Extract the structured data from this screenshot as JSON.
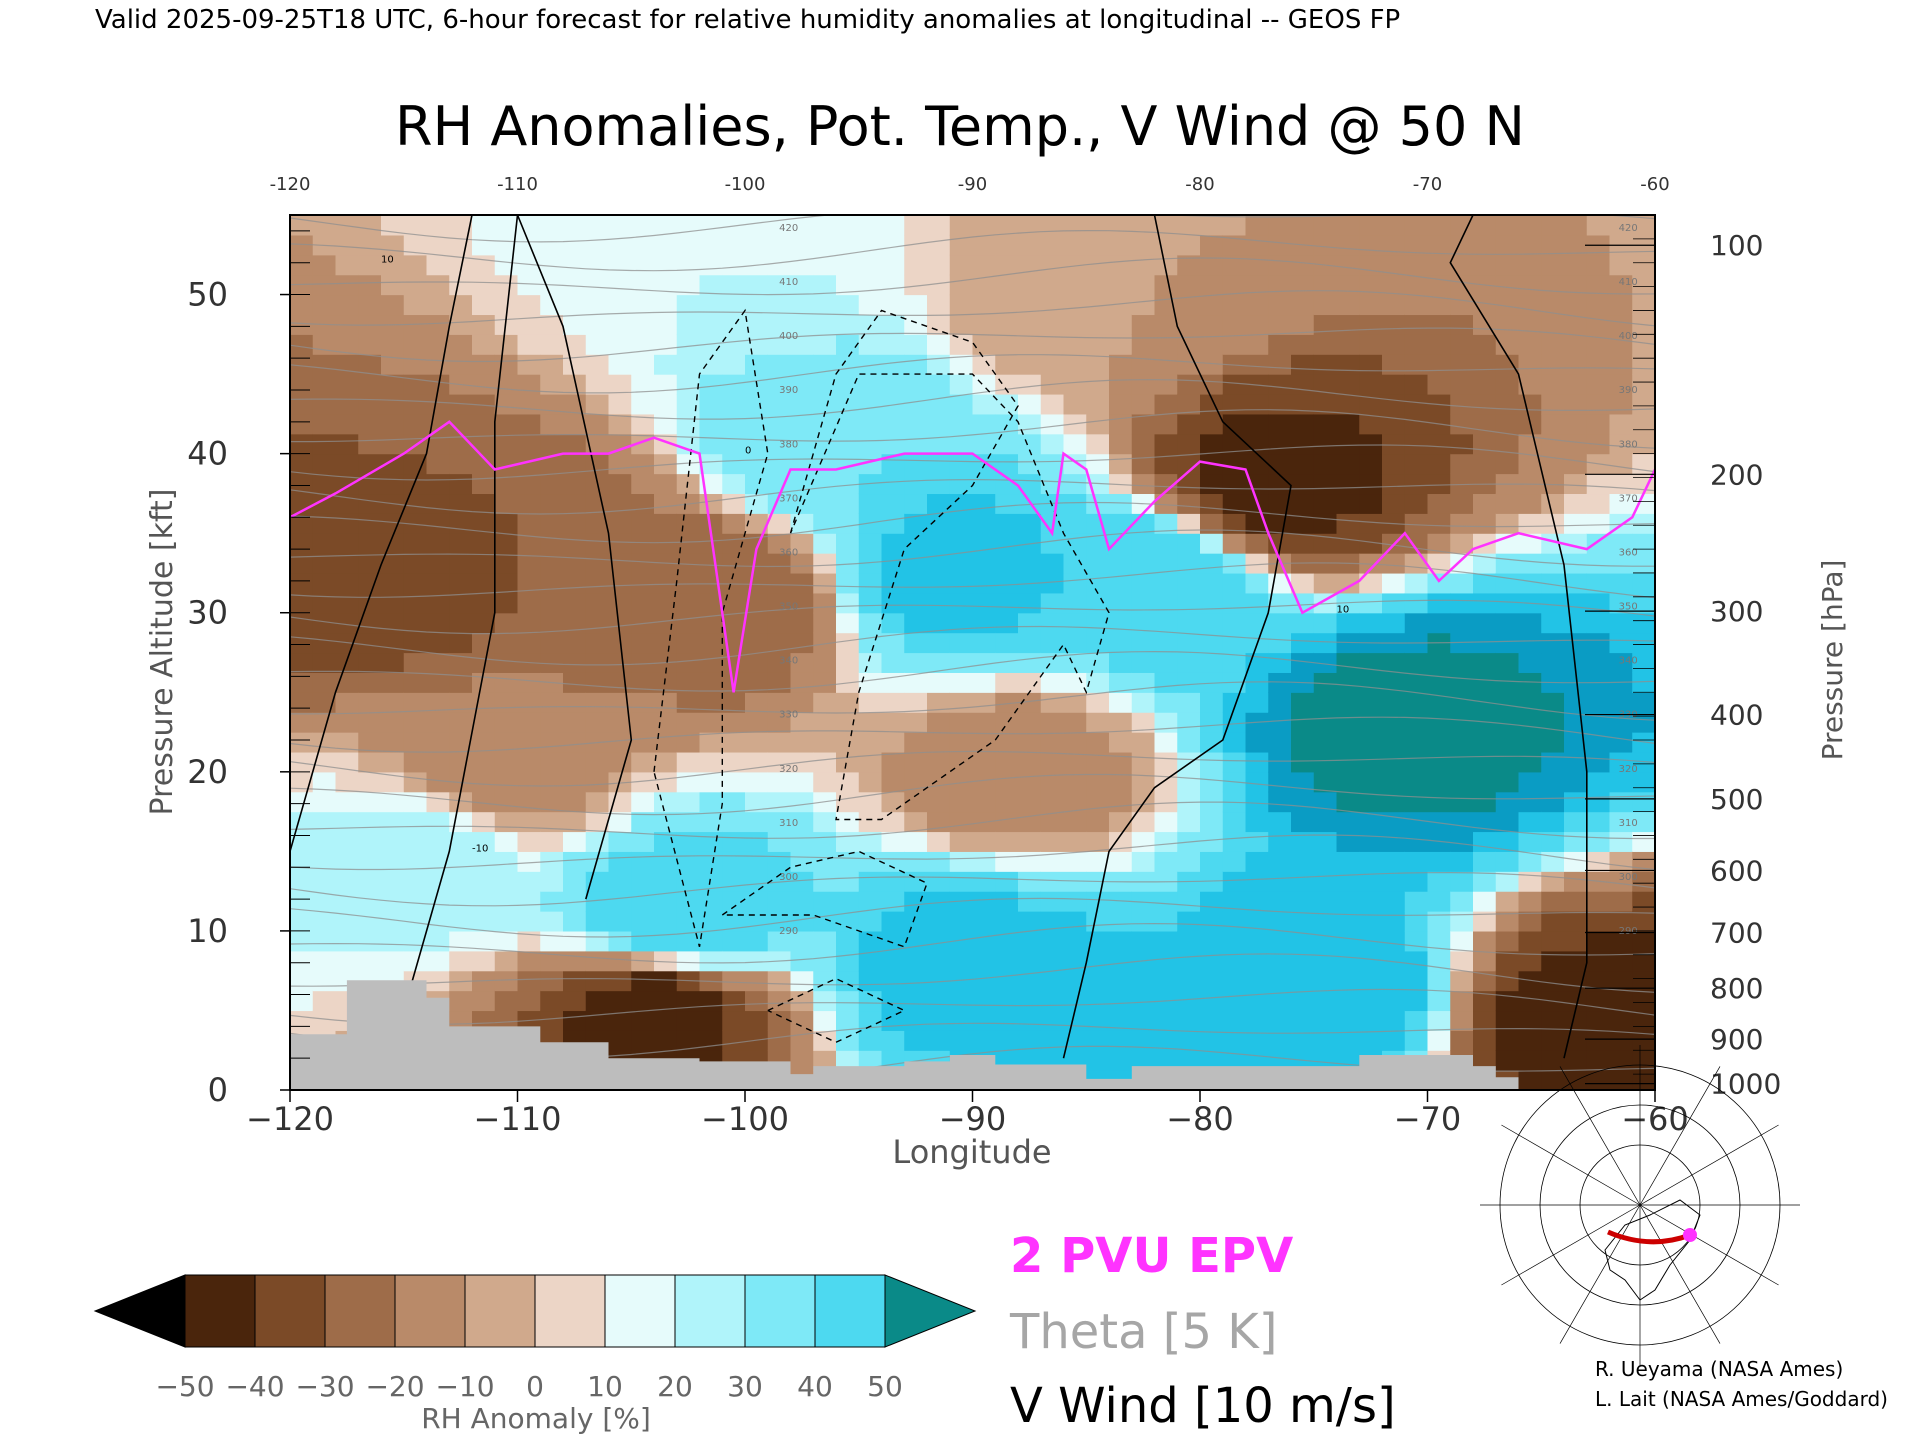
{
  "header": {
    "valid_line": "Valid 2025-09-25T18 UTC, 6-hour forecast for relative humidity anomalies at longitudinal -- GEOS FP"
  },
  "chart_data": {
    "type": "heatmap",
    "title": "RH Anomalies, Pot. Temp., V Wind @ 50 N",
    "xlabel": "Longitude",
    "ylabel_left": "Pressure Altitude [kft]",
    "ylabel_right": "Pressure [hPa]",
    "xlim": [
      -120,
      -60
    ],
    "ylim_kft": [
      0,
      55
    ],
    "x_ticks_bottom": [
      -120,
      -110,
      -100,
      -90,
      -80,
      -70,
      -60
    ],
    "x_ticks_top": [
      -120,
      -110,
      -100,
      -90,
      -80,
      -70,
      -60
    ],
    "y_ticks_kft": [
      0,
      10,
      20,
      30,
      40,
      50
    ],
    "pressure_ticks": [
      {
        "hpa": "100",
        "kft": 53.1
      },
      {
        "hpa": "200",
        "kft": 38.7
      },
      {
        "hpa": "300",
        "kft": 30.1
      },
      {
        "hpa": "400",
        "kft": 23.6
      },
      {
        "hpa": "500",
        "kft": 18.3
      },
      {
        "hpa": "600",
        "kft": 13.8
      },
      {
        "hpa": "700",
        "kft": 9.9
      },
      {
        "hpa": "800",
        "kft": 6.4
      },
      {
        "hpa": "900",
        "kft": 3.2
      },
      {
        "hpa": "1000",
        "kft": 0.4
      }
    ],
    "colorbar": {
      "label": "RH Anomaly [%]",
      "tick_labels": [
        "-50",
        "-40",
        "-30",
        "-20",
        "-10",
        "0",
        "10",
        "20",
        "30",
        "40",
        "50"
      ],
      "colors": [
        "#000000",
        "#4a250c",
        "#7b4a27",
        "#9e6c49",
        "#b98a69",
        "#d0a98c",
        "#ecd5c6",
        "#e6fbfb",
        "#b0f4fa",
        "#7ee9f7",
        "#4dd9f0",
        "#22c3e6",
        "#0a9cc4",
        "#0a8a88"
      ]
    },
    "rh_anomaly_samples_pct": [
      {
        "lon": -116,
        "kft": 32,
        "value": -35
      },
      {
        "lon": -109,
        "kft": 33,
        "value": -30
      },
      {
        "lon": -101,
        "kft": 31,
        "value": -30
      },
      {
        "lon": -111,
        "kft": 20,
        "value": -15
      },
      {
        "lon": -114,
        "kft": 15,
        "value": 10
      },
      {
        "lon": -103,
        "kft": 11,
        "value": 30
      },
      {
        "lon": -91,
        "kft": 33,
        "value": 35
      },
      {
        "lon": -96,
        "kft": 40,
        "value": 20
      },
      {
        "lon": -82,
        "kft": 32,
        "value": 30
      },
      {
        "lon": -77,
        "kft": 38,
        "value": -45
      },
      {
        "lon": -71,
        "kft": 23,
        "value": 55
      },
      {
        "lon": -90,
        "kft": 8,
        "value": 35
      },
      {
        "lon": -75,
        "kft": 6,
        "value": 40
      },
      {
        "lon": -63,
        "kft": 4,
        "value": -45
      },
      {
        "lon": -104,
        "kft": 5,
        "value": -45
      },
      {
        "lon": -85,
        "kft": 50,
        "value": -10
      },
      {
        "lon": -100,
        "kft": 52,
        "value": 5
      },
      {
        "lon": -88,
        "kft": 20,
        "value": -15
      }
    ],
    "theta_contour_labels": [
      "420",
      "410",
      "400",
      "390",
      "380",
      "370",
      "360",
      "350",
      "340",
      "330",
      "320",
      "310",
      "300",
      "290"
    ],
    "pv_2pvu_line": [
      [
        -120,
        36
      ],
      [
        -118,
        37.5
      ],
      [
        -115,
        40
      ],
      [
        -113,
        42
      ],
      [
        -111,
        39
      ],
      [
        -108,
        40
      ],
      [
        -106,
        40
      ],
      [
        -104,
        41
      ],
      [
        -102,
        40
      ],
      [
        -101.5,
        35
      ],
      [
        -100.5,
        25
      ],
      [
        -99.5,
        34
      ],
      [
        -98,
        39
      ],
      [
        -96,
        39
      ],
      [
        -93,
        40
      ],
      [
        -90,
        40
      ],
      [
        -88,
        38
      ],
      [
        -86.5,
        35
      ],
      [
        -86,
        40
      ],
      [
        -85,
        39
      ],
      [
        -84,
        34
      ],
      [
        -82,
        37
      ],
      [
        -80,
        39.5
      ],
      [
        -78,
        39
      ],
      [
        -77,
        35
      ],
      [
        -75.5,
        30
      ],
      [
        -73,
        32
      ],
      [
        -71,
        35
      ],
      [
        -69.5,
        32
      ],
      [
        -68,
        34
      ],
      [
        -66,
        35
      ],
      [
        -63,
        34
      ],
      [
        -61,
        36
      ],
      [
        -60,
        39
      ]
    ],
    "v_wind_contour_labels": [
      "10",
      "0",
      "-10"
    ],
    "legend": [
      {
        "text": "2 PVU EPV",
        "color": "#ff33ff"
      },
      {
        "text": "Theta [5 K]",
        "color": "#a6a6a6"
      },
      {
        "text": "V Wind [10 m/s]",
        "color": "#000000"
      }
    ],
    "terrain_color": "#bdbdbd",
    "map_inset": {
      "marker_color": "#ff33ff",
      "section_color": "#cc0000"
    }
  },
  "credits": [
    "R. Ueyama (NASA Ames)",
    "L. Lait (NASA Ames/Goddard)"
  ]
}
